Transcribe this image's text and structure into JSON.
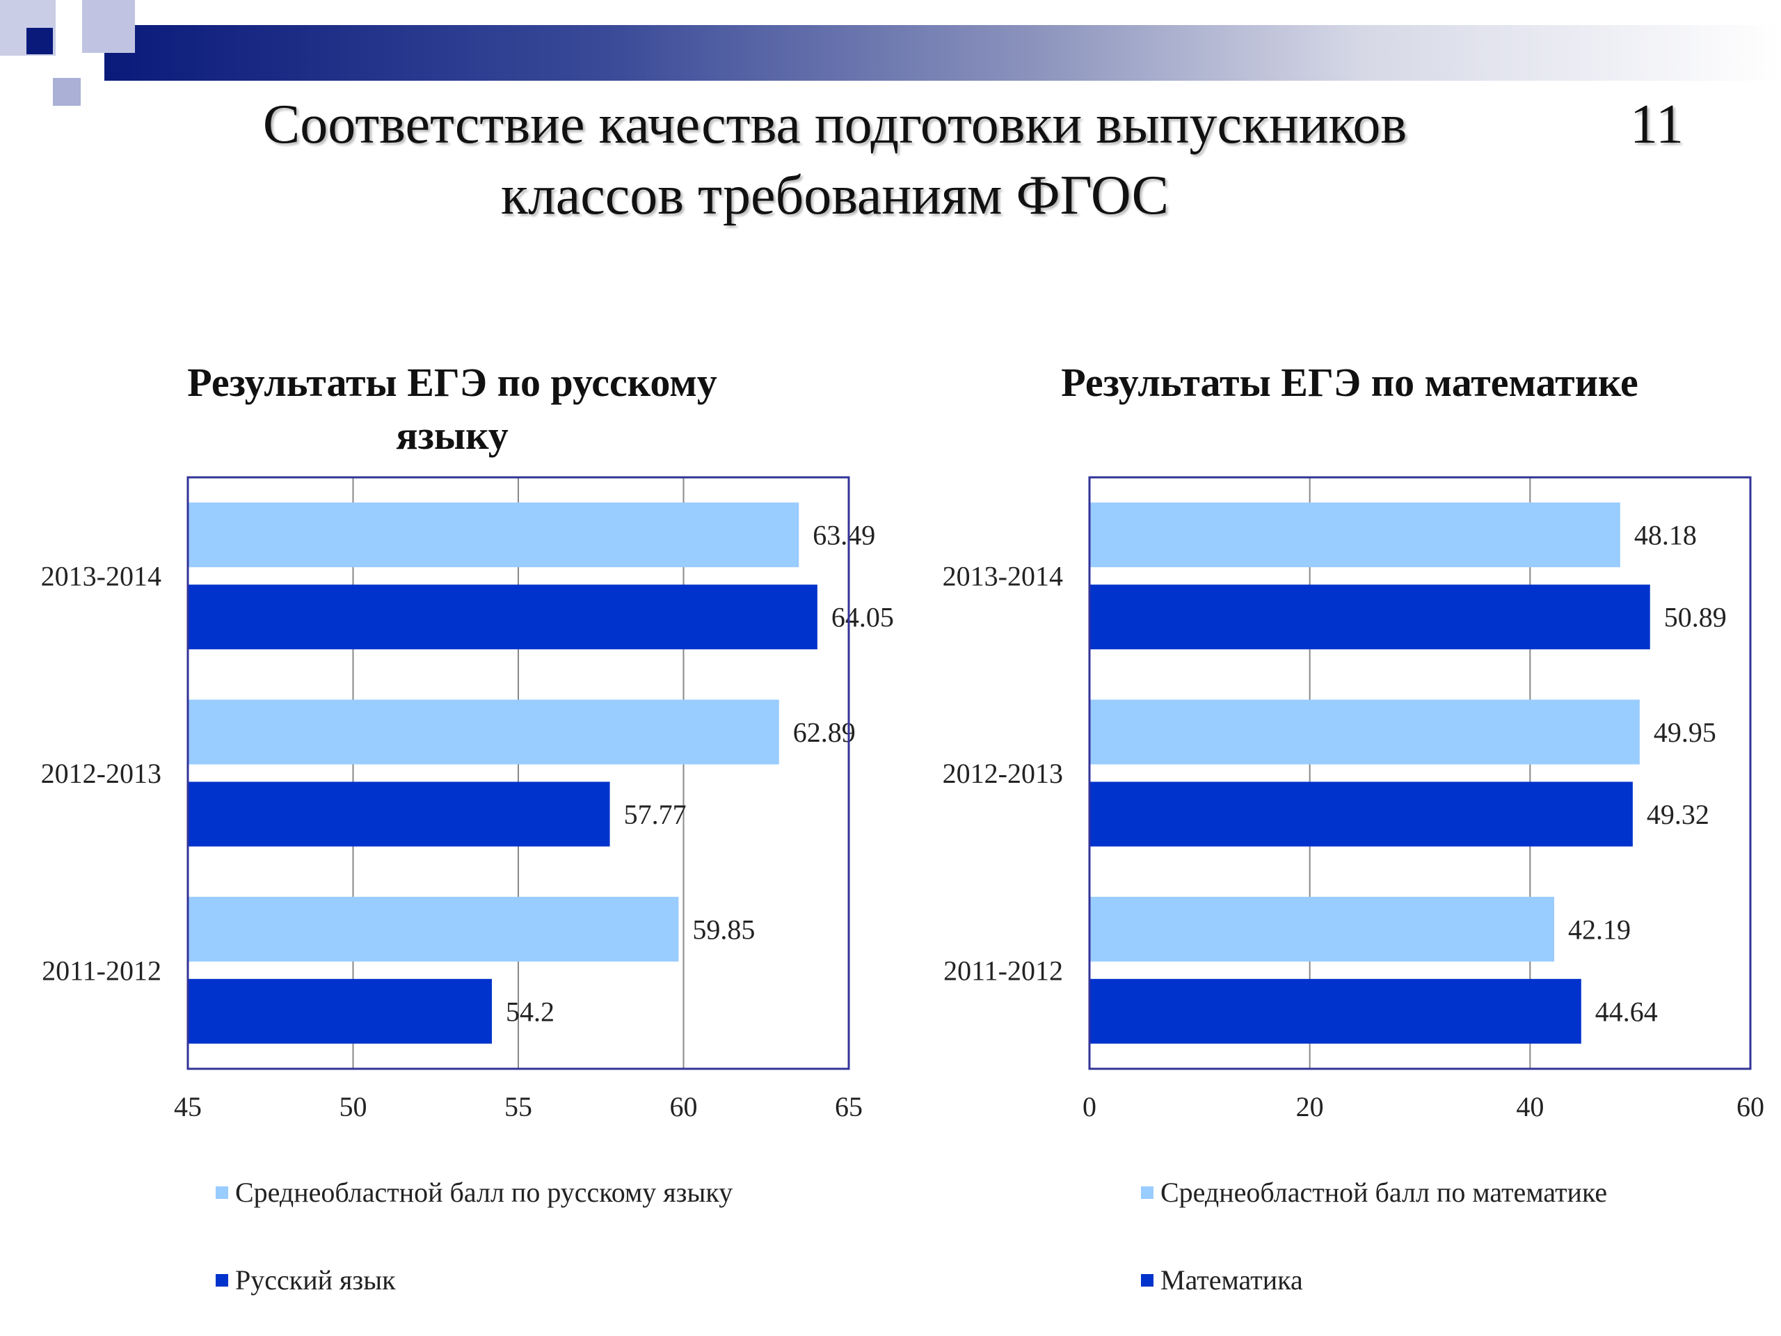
{
  "slide": {
    "title_line1": "Соответствие качества подготовки выпускников",
    "title_line2": "классов требованиям ФГОС",
    "number": "11"
  },
  "colors": {
    "regional": "#99ccff",
    "school": "#0033cc",
    "axis": "#333399",
    "grid": "#888888"
  },
  "chart_data": [
    {
      "type": "bar",
      "orientation": "horizontal",
      "title": "Результаты ЕГЭ по русскому языку",
      "title_line1": "Результаты ЕГЭ по русскому",
      "title_line2": "языку",
      "categories": [
        "2013-2014",
        "2012-2013",
        "2011-2012"
      ],
      "series": [
        {
          "name": "Среднеобластной балл по русскому языку",
          "values": [
            63.49,
            62.89,
            59.85
          ],
          "labels": [
            "63.49",
            "62.89",
            "59.85"
          ]
        },
        {
          "name": "Русский язык",
          "values": [
            64.05,
            57.77,
            54.2
          ],
          "labels": [
            "64.05",
            "57.77",
            "54.2"
          ]
        }
      ],
      "xlim": [
        45,
        65
      ],
      "xticks": [
        "45",
        "50",
        "55",
        "60",
        "65"
      ],
      "grid": true,
      "legend_position": "bottom"
    },
    {
      "type": "bar",
      "orientation": "horizontal",
      "title": "Результаты ЕГЭ по математике",
      "title_line1": "Результаты ЕГЭ по математике",
      "title_line2": "",
      "categories": [
        "2013-2014",
        "2012-2013",
        "2011-2012"
      ],
      "series": [
        {
          "name": "Среднеобластной балл по математике",
          "values": [
            48.18,
            49.95,
            42.19
          ],
          "labels": [
            "48.18",
            "49.95",
            "42.19"
          ]
        },
        {
          "name": "Математика",
          "values": [
            50.89,
            49.32,
            44.64
          ],
          "labels": [
            "50.89",
            "49.32",
            "44.64"
          ]
        }
      ],
      "xlim": [
        0,
        60
      ],
      "xticks": [
        "0",
        "20",
        "40",
        "60"
      ],
      "grid": true,
      "legend_position": "bottom"
    }
  ]
}
